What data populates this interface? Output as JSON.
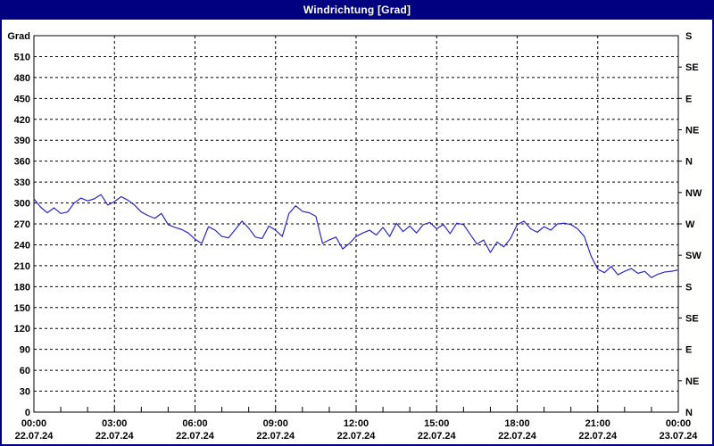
{
  "window": {
    "title": "Windrichtung [Grad]"
  },
  "colors": {
    "title_bar_bg": "#000080",
    "title_text": "#ffffff",
    "outer_border": "#000080",
    "plot_background": "#ffffff",
    "axis": "#000000",
    "grid": "#000000",
    "line": "#2828c8"
  },
  "chart_data": {
    "type": "line",
    "title": "Windrichtung [Grad]",
    "grid": "dashed",
    "legend": "none",
    "y_axis_left": {
      "label": "Grad",
      "min": 0,
      "max": 540,
      "tick_step": 30,
      "tick_labels": [
        "0",
        "30",
        "60",
        "90",
        "120",
        "150",
        "180",
        "210",
        "240",
        "270",
        "300",
        "330",
        "360",
        "390",
        "420",
        "450",
        "480",
        "510"
      ]
    },
    "y_axis_right": {
      "tick_step_degrees": 45,
      "labels_bottom_to_top": [
        "N",
        "NE",
        "E",
        "SE",
        "S",
        "SW",
        "W",
        "NW",
        "N",
        "NE",
        "E",
        "SE",
        "S"
      ]
    },
    "x_axis": {
      "range_hours": [
        0,
        24
      ],
      "major_tick_hours": 3,
      "minor_tick_hours": 1,
      "major_tick_times": [
        "00:00",
        "03:00",
        "06:00",
        "09:00",
        "12:00",
        "15:00",
        "18:00",
        "21:00",
        "00:00"
      ],
      "major_tick_dates": [
        "22.07.24",
        "22.07.24",
        "22.07.24",
        "22.07.24",
        "22.07.24",
        "22.07.24",
        "22.07.24",
        "22.07.24",
        "23.07.24"
      ]
    },
    "series": [
      {
        "name": "Windrichtung",
        "unit": "Grad",
        "color": "#2828c8",
        "start_time": "00:00",
        "interval_minutes": 15,
        "values": [
          306,
          294,
          286,
          293,
          285,
          287,
          300,
          307,
          303,
          306,
          312,
          297,
          302,
          309,
          304,
          297,
          287,
          282,
          278,
          285,
          269,
          265,
          262,
          257,
          248,
          242,
          266,
          261,
          252,
          250,
          262,
          274,
          264,
          251,
          249,
          267,
          261,
          252,
          285,
          296,
          288,
          286,
          281,
          242,
          247,
          251,
          234,
          242,
          252,
          257,
          261,
          254,
          265,
          252,
          271,
          259,
          267,
          257,
          269,
          272,
          263,
          269,
          256,
          271,
          269,
          255,
          241,
          247,
          229,
          244,
          237,
          249,
          269,
          274,
          263,
          258,
          266,
          261,
          270,
          271,
          269,
          263,
          252,
          224,
          205,
          200,
          209,
          197,
          202,
          206,
          199,
          202,
          193,
          198,
          201,
          202,
          204
        ]
      }
    ]
  }
}
